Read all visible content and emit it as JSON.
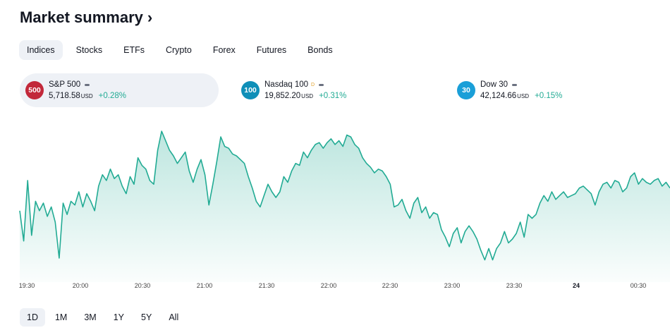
{
  "title": "Market summary",
  "tabs": [
    {
      "label": "Indices",
      "active": true
    },
    {
      "label": "Stocks"
    },
    {
      "label": "ETFs"
    },
    {
      "label": "Crypto"
    },
    {
      "label": "Forex"
    },
    {
      "label": "Futures"
    },
    {
      "label": "Bonds"
    }
  ],
  "cards": [
    {
      "badge": "500",
      "badge_color": "#c2283a",
      "name": "S&P 500",
      "delay_marker": "",
      "value": "5,718.58",
      "currency": "USD",
      "change": "+0.28%",
      "active": true
    },
    {
      "badge": "100",
      "badge_color": "#0f8fb8",
      "name": "Nasdaq 100",
      "delay_marker": "D",
      "value": "19,852.20",
      "currency": "USD",
      "change": "+0.31%"
    },
    {
      "badge": "30",
      "badge_color": "#1a9fd8",
      "name": "Dow 30",
      "delay_marker": "",
      "value": "42,124.66",
      "currency": "USD",
      "change": "+0.15%"
    }
  ],
  "chart_data": {
    "type": "area",
    "series_color": "#22ab94",
    "x_ticks": [
      "19:30",
      "20:00",
      "20:30",
      "21:00",
      "21:30",
      "22:00",
      "22:30",
      "23:00",
      "23:30",
      "24",
      "00:30"
    ],
    "bold_ticks": [
      "24"
    ],
    "values": [
      5715.8,
      5714.2,
      5717.4,
      5714.5,
      5716.3,
      5715.8,
      5716.2,
      5715.5,
      5716.0,
      5715.2,
      5713.3,
      5716.2,
      5715.6,
      5716.3,
      5716.1,
      5716.8,
      5716.0,
      5716.7,
      5716.3,
      5715.8,
      5717.1,
      5717.7,
      5717.4,
      5718.0,
      5717.5,
      5717.7,
      5717.1,
      5716.7,
      5717.6,
      5717.2,
      5718.6,
      5718.2,
      5718.0,
      5717.4,
      5717.2,
      5719.0,
      5720.0,
      5719.5,
      5719.0,
      5718.7,
      5718.3,
      5718.6,
      5718.9,
      5717.9,
      5717.3,
      5718.0,
      5718.5,
      5717.7,
      5716.1,
      5717.2,
      5718.4,
      5719.7,
      5719.2,
      5719.1,
      5718.8,
      5718.7,
      5718.5,
      5718.3,
      5717.6,
      5717.0,
      5716.3,
      5716.0,
      5716.6,
      5717.2,
      5716.8,
      5716.5,
      5716.8,
      5717.6,
      5717.3,
      5717.9,
      5718.3,
      5718.2,
      5718.9,
      5718.6,
      5719.0,
      5719.3,
      5719.4,
      5719.1,
      5719.4,
      5719.6,
      5719.3,
      5719.5,
      5719.2,
      5719.8,
      5719.7,
      5719.3,
      5719.1,
      5718.6,
      5718.3,
      5718.1,
      5717.8,
      5718.0,
      5717.9,
      5717.6,
      5717.2,
      5716.0,
      5716.1,
      5716.4,
      5715.8,
      5715.4,
      5716.2,
      5716.5,
      5715.7,
      5716.0,
      5715.4,
      5715.7,
      5715.6,
      5714.8,
      5714.4,
      5713.9,
      5714.6,
      5714.9,
      5714.1,
      5714.7,
      5715.0,
      5714.7,
      5714.3,
      5713.7,
      5713.2,
      5713.8,
      5713.2,
      5713.8,
      5714.1,
      5714.7,
      5714.1,
      5714.3,
      5714.6,
      5715.2,
      5714.4,
      5715.6,
      5715.4,
      5715.6,
      5716.2,
      5716.6,
      5716.3,
      5716.8,
      5716.4,
      5716.6,
      5716.8,
      5716.5,
      5716.6,
      5716.7,
      5717.0,
      5717.1,
      5716.9,
      5716.7,
      5716.1,
      5716.8,
      5717.2,
      5717.3,
      5717.0,
      5717.4,
      5717.3,
      5716.8,
      5717.0,
      5717.6,
      5717.8,
      5717.2,
      5717.5,
      5717.3,
      5717.2,
      5717.4,
      5717.5,
      5717.1,
      5717.3,
      5717.0
    ],
    "ylim": [
      5712.4,
      5720.6
    ]
  },
  "ranges": [
    {
      "label": "1D",
      "active": true
    },
    {
      "label": "1M"
    },
    {
      "label": "3M"
    },
    {
      "label": "1Y"
    },
    {
      "label": "5Y"
    },
    {
      "label": "All"
    }
  ]
}
